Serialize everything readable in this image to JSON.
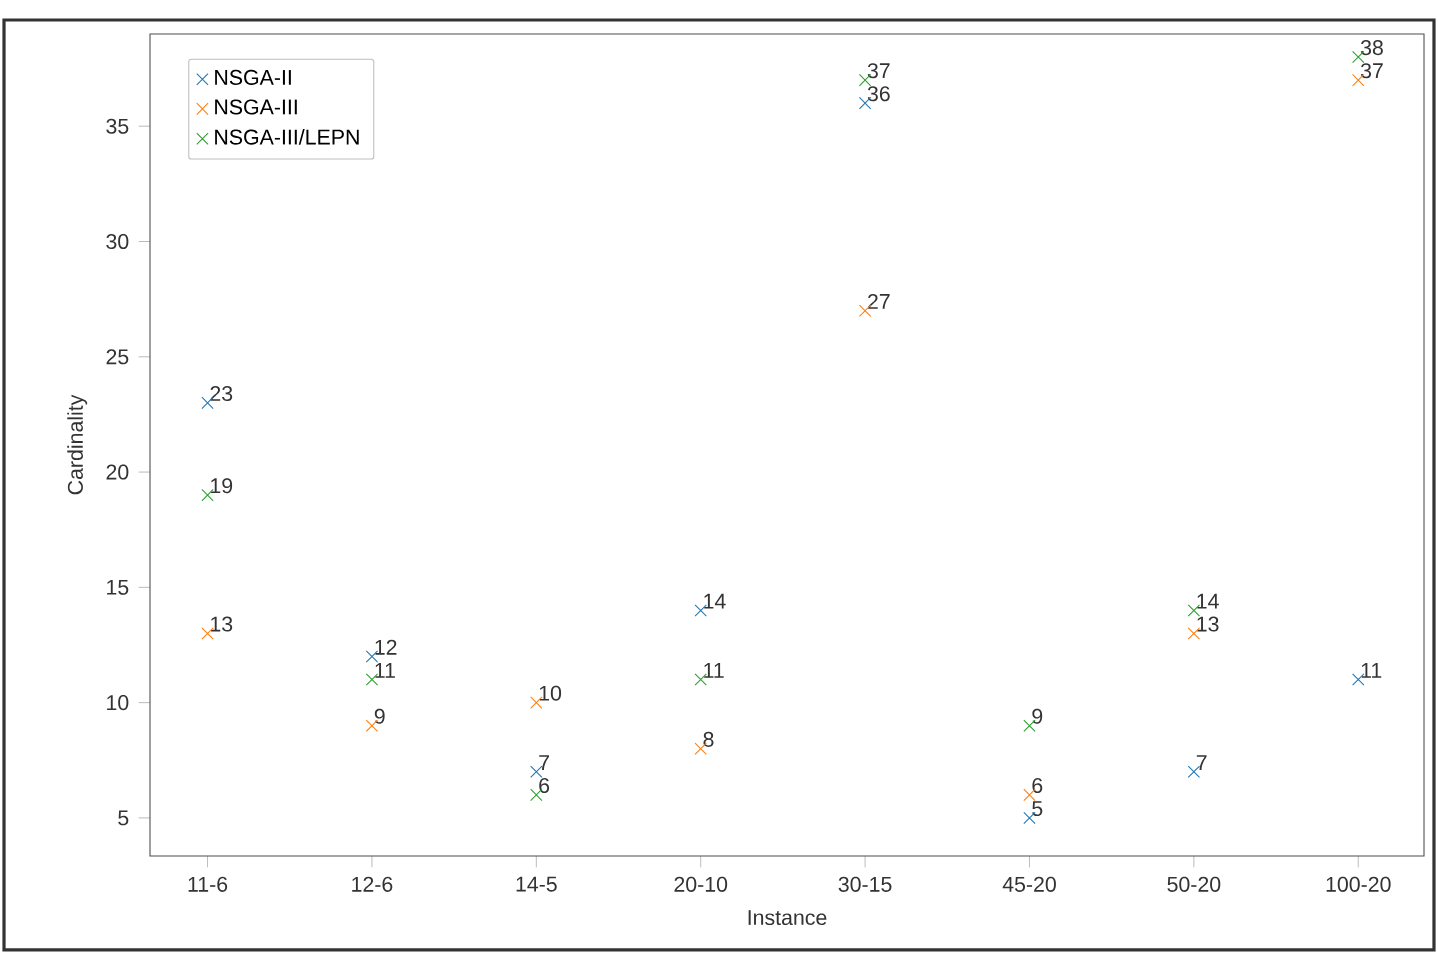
{
  "chart_data": {
    "type": "scatter",
    "xlabel": "Instance",
    "ylabel": "Cardinality",
    "categories": [
      "11-6",
      "12-6",
      "14-5",
      "20-10",
      "30-15",
      "45-20",
      "50-20",
      "100-20"
    ],
    "series": [
      {
        "name": "NSGA-II",
        "color": "#1f77b4",
        "values": [
          23,
          12,
          7,
          14,
          36,
          5,
          7,
          11
        ]
      },
      {
        "name": "NSGA-III",
        "color": "#ff7f0e",
        "values": [
          13,
          9,
          10,
          8,
          27,
          6,
          13,
          37
        ]
      },
      {
        "name": "NSGA-III/LEPN",
        "color": "#2ca02c",
        "values": [
          19,
          11,
          6,
          11,
          37,
          9,
          14,
          38
        ]
      }
    ],
    "ylim": [
      3.35,
      39
    ],
    "yticks": [
      5,
      10,
      15,
      20,
      25,
      30,
      35
    ],
    "marker": "cross",
    "legend": "top left",
    "data_labels": true,
    "grid": false
  }
}
